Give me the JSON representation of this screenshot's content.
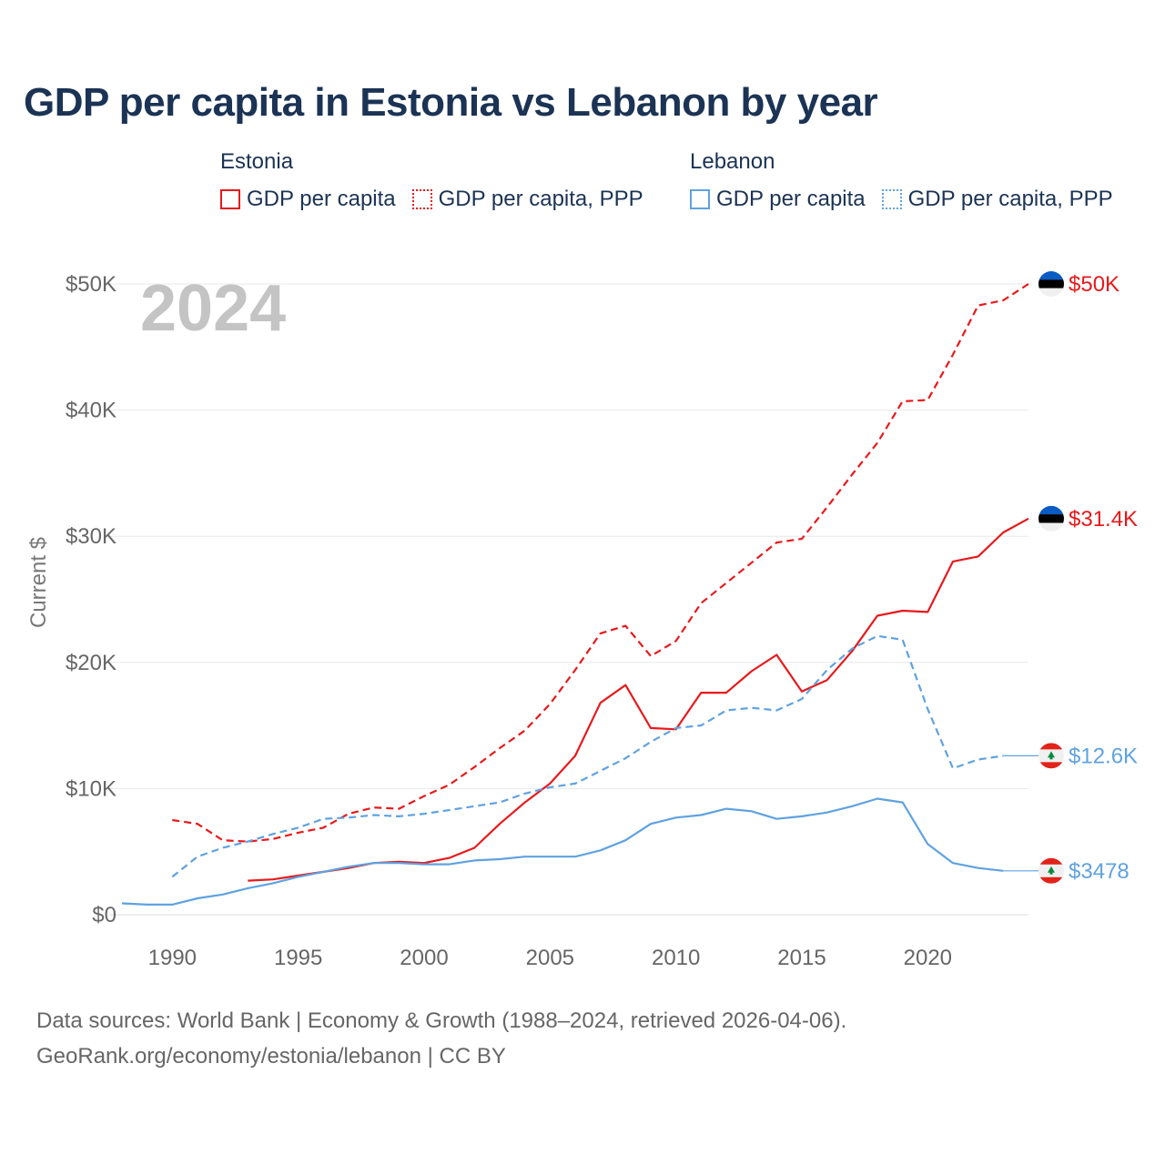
{
  "title": "GDP per capita in Estonia vs Lebanon by year",
  "legend": [
    {
      "country": "Estonia",
      "items": [
        {
          "label": "GDP per capita",
          "style": "solid",
          "color": "#e8191c"
        },
        {
          "label": "GDP per capita, PPP",
          "style": "dotted",
          "color": "#e8191c"
        }
      ]
    },
    {
      "country": "Lebanon",
      "items": [
        {
          "label": "GDP per capita",
          "style": "solid",
          "color": "#5fa2e0"
        },
        {
          "label": "GDP per capita, PPP",
          "style": "dotted",
          "color": "#5fa2e0"
        }
      ]
    }
  ],
  "footer": {
    "line1": "Data sources: World Bank | Economy & Growth (1988–2024, retrieved 2026-04-06).",
    "line2": "GeoRank.org/economy/estonia/lebanon | CC BY"
  },
  "chart_data": {
    "type": "line",
    "title": "GDP per capita in Estonia vs Lebanon by year",
    "year_overlay": "2024",
    "xlabel": "",
    "ylabel": "Current $",
    "xlim": [
      1988,
      2024
    ],
    "ylim": [
      0,
      50000
    ],
    "x_ticks": [
      1990,
      1995,
      2000,
      2005,
      2010,
      2015,
      2020
    ],
    "y_ticks": [
      {
        "value": 0,
        "label": "$0"
      },
      {
        "value": 10000,
        "label": "$10K"
      },
      {
        "value": 20000,
        "label": "$20K"
      },
      {
        "value": 30000,
        "label": "$30K"
      },
      {
        "value": 40000,
        "label": "$40K"
      },
      {
        "value": 50000,
        "label": "$50K"
      }
    ],
    "grid": true,
    "series": [
      {
        "name": "Estonia GDP per capita, PPP",
        "country": "Estonia",
        "color": "#e8191c",
        "dash": "dashed",
        "end_label": "$50K",
        "flag": "estonia",
        "x": [
          1990,
          1991,
          1992,
          1993,
          1994,
          1995,
          1996,
          1997,
          1998,
          1999,
          2000,
          2001,
          2002,
          2003,
          2004,
          2005,
          2006,
          2007,
          2008,
          2009,
          2010,
          2011,
          2012,
          2013,
          2014,
          2015,
          2016,
          2017,
          2018,
          2019,
          2020,
          2021,
          2022,
          2023,
          2024
        ],
        "y": [
          7500,
          7200,
          5900,
          5800,
          6000,
          6500,
          6900,
          8000,
          8500,
          8400,
          9400,
          10300,
          11700,
          13200,
          14600,
          16700,
          19400,
          22300,
          22900,
          20500,
          21700,
          24700,
          26300,
          27900,
          29500,
          29800,
          32300,
          34900,
          37400,
          40700,
          40800,
          44400,
          48300,
          48700,
          50000
        ]
      },
      {
        "name": "Estonia GDP per capita",
        "country": "Estonia",
        "color": "#e8191c",
        "dash": "solid",
        "end_label": "$31.4K",
        "flag": "estonia",
        "x": [
          1993,
          1994,
          1995,
          1996,
          1997,
          1998,
          1999,
          2000,
          2001,
          2002,
          2003,
          2004,
          2005,
          2006,
          2007,
          2008,
          2009,
          2010,
          2011,
          2012,
          2013,
          2014,
          2015,
          2016,
          2017,
          2018,
          2019,
          2020,
          2021,
          2022,
          2023,
          2024
        ],
        "y": [
          2700,
          2800,
          3100,
          3400,
          3700,
          4100,
          4200,
          4100,
          4500,
          5300,
          7200,
          8900,
          10400,
          12600,
          16800,
          18200,
          14800,
          14700,
          17600,
          17600,
          19300,
          20600,
          17700,
          18600,
          20900,
          23700,
          24100,
          24000,
          28000,
          28400,
          30300,
          31400
        ]
      },
      {
        "name": "Lebanon GDP per capita, PPP",
        "country": "Lebanon",
        "color": "#5fa2e0",
        "dash": "dashed",
        "end_label": "$12.6K",
        "flag": "lebanon",
        "x": [
          1990,
          1991,
          1992,
          1993,
          1994,
          1995,
          1996,
          1997,
          1998,
          1999,
          2000,
          2001,
          2002,
          2003,
          2004,
          2005,
          2006,
          2007,
          2008,
          2009,
          2010,
          2011,
          2012,
          2013,
          2014,
          2015,
          2016,
          2017,
          2018,
          2019,
          2020,
          2021,
          2022,
          2023
        ],
        "y": [
          3000,
          4600,
          5300,
          5800,
          6400,
          6900,
          7600,
          7700,
          7900,
          7800,
          8000,
          8300,
          8600,
          8900,
          9600,
          10100,
          10400,
          11400,
          12400,
          13700,
          14800,
          15000,
          16200,
          16400,
          16200,
          17100,
          19400,
          21100,
          22100,
          21800,
          16300,
          11600,
          12300,
          12600
        ]
      },
      {
        "name": "Lebanon GDP per capita",
        "country": "Lebanon",
        "color": "#5fa2e0",
        "dash": "solid",
        "end_label": "$3478",
        "flag": "lebanon",
        "x": [
          1988,
          1989,
          1990,
          1991,
          1992,
          1993,
          1994,
          1995,
          1996,
          1997,
          1998,
          1999,
          2000,
          2001,
          2002,
          2003,
          2004,
          2005,
          2006,
          2007,
          2008,
          2009,
          2010,
          2011,
          2012,
          2013,
          2014,
          2015,
          2016,
          2017,
          2018,
          2019,
          2020,
          2021,
          2022,
          2023
        ],
        "y": [
          900,
          800,
          800,
          1300,
          1600,
          2100,
          2500,
          3000,
          3400,
          3800,
          4100,
          4100,
          4000,
          4000,
          4300,
          4400,
          4600,
          4600,
          4600,
          5100,
          5900,
          7200,
          7700,
          7900,
          8400,
          8200,
          7600,
          7800,
          8100,
          8600,
          9200,
          8900,
          5600,
          4100,
          3700,
          3478
        ]
      }
    ]
  }
}
